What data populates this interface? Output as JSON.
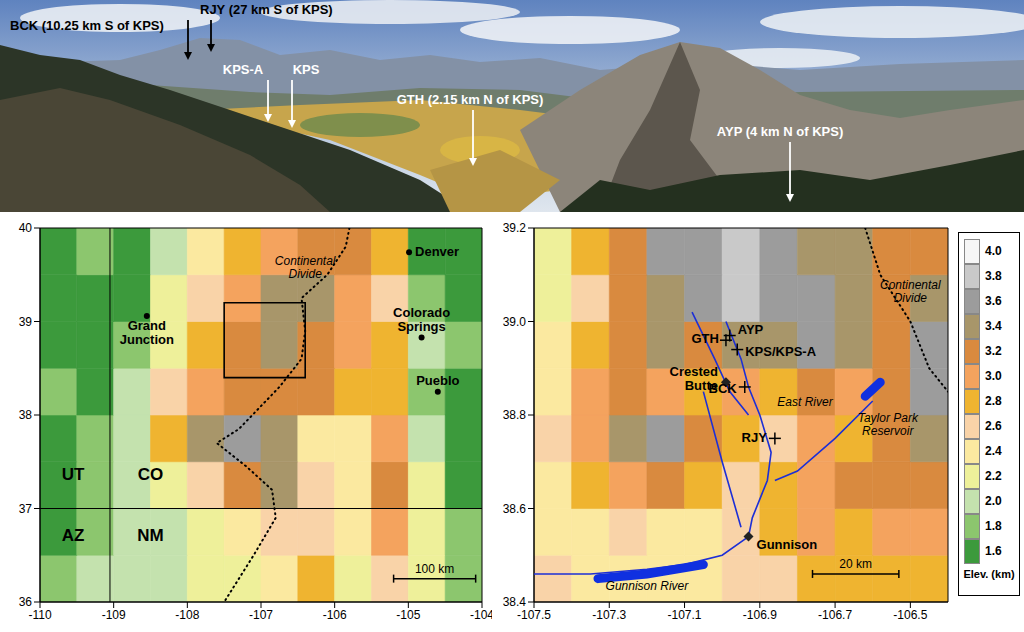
{
  "photo": {
    "labels": [
      "BCK (10.25 km S of KPS)",
      "RJY (27 km S of KPS)",
      "KPS-A",
      "KPS",
      "GTH (2.15 km N of KPS)",
      "AYP (4 km N of KPS)"
    ]
  },
  "chart_data": [
    {
      "type": "map",
      "xlim": [
        -110,
        -104
      ],
      "ylim": [
        36,
        40
      ],
      "xticks": [
        -110,
        -109,
        -108,
        -107,
        -106,
        -105,
        -104
      ],
      "yticks": [
        36,
        37,
        38,
        39,
        40
      ],
      "cells": {
        "lon_edges": [
          -110,
          -109.5,
          -109,
          -108.5,
          -108,
          -107.5,
          -107,
          -106.5,
          -106,
          -105.5,
          -105,
          -104.5,
          -104
        ],
        "lat_edges": [
          36,
          36.5,
          37,
          37.5,
          38,
          38.5,
          39,
          39.5,
          40
        ],
        "elevation": [
          [
            1.8,
            2.0,
            2.0,
            2.0,
            2.2,
            2.2,
            2.4,
            2.8,
            2.2,
            2.6,
            2.2,
            1.8
          ],
          [
            1.6,
            1.8,
            2.0,
            2.0,
            2.2,
            2.4,
            2.6,
            2.6,
            2.4,
            3.0,
            2.2,
            1.8
          ],
          [
            1.6,
            1.8,
            2.0,
            2.2,
            2.6,
            3.2,
            3.4,
            2.6,
            2.4,
            3.2,
            2.2,
            1.6
          ],
          [
            1.6,
            1.8,
            2.0,
            2.8,
            3.4,
            3.6,
            3.4,
            2.4,
            2.4,
            3.0,
            2.0,
            1.6
          ],
          [
            1.8,
            1.6,
            2.0,
            2.6,
            3.0,
            3.2,
            3.2,
            3.2,
            2.8,
            2.8,
            1.8,
            1.6
          ],
          [
            1.6,
            1.6,
            1.8,
            2.2,
            2.8,
            3.2,
            3.4,
            3.2,
            3.0,
            2.8,
            2.0,
            1.8
          ],
          [
            1.6,
            1.6,
            1.6,
            2.2,
            2.6,
            3.0,
            3.4,
            3.4,
            3.0,
            2.6,
            1.8,
            1.6
          ],
          [
            1.6,
            1.8,
            1.6,
            2.0,
            2.4,
            2.8,
            3.0,
            3.2,
            3.2,
            2.8,
            1.6,
            1.6
          ]
        ]
      },
      "borders": {
        "lon": -109.05,
        "lat": 37
      },
      "continental_divide": {
        "lon": [
          -105.8,
          -105.85,
          -106.1,
          -106.45,
          -106.4,
          -106.45,
          -106.75,
          -107.3,
          -107.6,
          -107.2,
          -106.85,
          -106.8,
          -107.1,
          -107.5
        ],
        "lat": [
          40,
          39.8,
          39.5,
          39.25,
          38.9,
          38.6,
          38.3,
          37.85,
          37.7,
          37.45,
          37.2,
          36.9,
          36.5,
          36.0
        ]
      },
      "points": [
        {
          "label": "Denver",
          "lon": -104.99,
          "lat": 39.74,
          "marker": "circle"
        },
        {
          "label": "Grand Junction",
          "lon": -108.55,
          "lat": 39.06,
          "marker": "circle"
        },
        {
          "label": "Colorado Springs",
          "lon": -104.82,
          "lat": 38.83,
          "marker": "circle"
        },
        {
          "label": "Pueblo",
          "lon": -104.6,
          "lat": 38.25,
          "marker": "circle"
        }
      ],
      "annotations": [
        "Continental Divide",
        "UT",
        "CO",
        "AZ",
        "NM"
      ],
      "scale_bar": {
        "km": 100,
        "label": "100 km"
      }
    },
    {
      "type": "map",
      "xlim": [
        -107.5,
        -106.4
      ],
      "ylim": [
        38.4,
        39.2
      ],
      "xticks": [
        -107.5,
        -107.3,
        -107.1,
        -106.9,
        -106.7,
        -106.5
      ],
      "yticks": [
        38.4,
        38.6,
        38.8,
        {
          "value": 39,
          "label": "39.0"
        },
        39.2
      ],
      "cells": {
        "lon_edges": [
          -107.5,
          -107.4,
          -107.3,
          -107.2,
          -107.1,
          -107.0,
          -106.9,
          -106.8,
          -106.7,
          -106.6,
          -106.5,
          -106.4
        ],
        "lat_edges": [
          38.4,
          38.5,
          38.6,
          38.7,
          38.8,
          38.9,
          39.0,
          39.1,
          39.2
        ],
        "elevation": [
          [
            2.6,
            2.4,
            2.4,
            2.4,
            2.4,
            2.6,
            2.6,
            2.8,
            2.8,
            2.8,
            2.8
          ],
          [
            2.4,
            2.4,
            2.6,
            2.4,
            2.4,
            2.6,
            2.8,
            3.0,
            2.8,
            3.0,
            3.0
          ],
          [
            2.4,
            2.8,
            3.0,
            3.2,
            2.8,
            2.6,
            2.8,
            3.0,
            3.2,
            3.2,
            3.2
          ],
          [
            2.6,
            3.0,
            3.4,
            3.6,
            3.2,
            2.8,
            2.6,
            3.0,
            2.8,
            3.2,
            3.4
          ],
          [
            2.4,
            3.0,
            3.2,
            3.0,
            2.8,
            3.0,
            2.8,
            3.2,
            3.0,
            3.2,
            3.6
          ],
          [
            2.4,
            2.8,
            3.2,
            3.4,
            3.2,
            3.4,
            3.4,
            3.6,
            3.4,
            3.2,
            3.6
          ],
          [
            2.2,
            2.6,
            3.2,
            3.4,
            3.6,
            3.8,
            3.6,
            3.6,
            3.4,
            3.2,
            3.4
          ],
          [
            2.2,
            2.8,
            3.2,
            3.6,
            3.6,
            3.8,
            3.6,
            3.4,
            3.4,
            3.2,
            3.2
          ]
        ]
      },
      "rivers": [
        {
          "lon": [
            -106.99,
            -106.95,
            -106.93,
            -106.9,
            -106.87,
            -106.88,
            -106.92,
            -106.93
          ],
          "lat": [
            39.0,
            38.92,
            38.86,
            38.8,
            38.72,
            38.66,
            38.58,
            38.54
          ]
        },
        {
          "lon": [
            -106.93,
            -107.0,
            -107.1,
            -107.2,
            -107.35,
            -107.5
          ],
          "lat": [
            38.54,
            38.5,
            38.48,
            38.47,
            38.46,
            38.46
          ]
        },
        {
          "lon": [
            -106.6,
            -106.7,
            -106.8,
            -106.86
          ],
          "lat": [
            38.83,
            38.75,
            38.68,
            38.66
          ]
        },
        {
          "lon": [
            -107.08,
            -107.02,
            -106.98,
            -106.93
          ],
          "lat": [
            39.02,
            38.92,
            38.85,
            38.8
          ]
        },
        {
          "lon": [
            -107.05,
            -107.0,
            -106.95
          ],
          "lat": [
            38.85,
            38.7,
            38.56
          ]
        }
      ],
      "reservoirs": [
        {
          "lon": [
            -107.05,
            -107.2,
            -107.33
          ],
          "lat": [
            38.48,
            38.46,
            38.45
          ]
        },
        {
          "lon": [
            -106.62,
            -106.58
          ],
          "lat": [
            38.84,
            38.87
          ]
        }
      ],
      "continental_divide": {
        "lon": [
          -106.62,
          -106.58,
          -106.5,
          -106.45,
          -106.4
        ],
        "lat": [
          39.2,
          39.1,
          39.0,
          38.9,
          38.85
        ]
      },
      "points": [
        {
          "label": "AYP",
          "lon": -106.98,
          "lat": 38.97,
          "marker": "cross"
        },
        {
          "label": "GTH",
          "lon": -106.99,
          "lat": 38.96,
          "marker": "cross"
        },
        {
          "label": "KPS/KPS-A",
          "lon": -106.96,
          "lat": 38.94,
          "marker": "cross"
        },
        {
          "label": "Crested Butte",
          "lon": -106.99,
          "lat": 38.87,
          "marker": "diamond"
        },
        {
          "label": "BCK",
          "lon": -106.94,
          "lat": 38.86,
          "marker": "cross"
        },
        {
          "label": "RJY",
          "lon": -106.86,
          "lat": 38.75,
          "marker": "cross"
        },
        {
          "label": "Gunnison",
          "lon": -106.93,
          "lat": 38.54,
          "marker": "diamond"
        }
      ],
      "annotations": [
        "Continental Divide",
        "East River",
        "Taylor Park Reservoir",
        "Gunnison River"
      ],
      "scale_bar": {
        "km": 20,
        "label": "20 km"
      },
      "colorbar": {
        "ticks": [
          1.6,
          1.8,
          {
            "value": 2,
            "label": "2.0"
          },
          2.2,
          2.4,
          2.6,
          2.8,
          {
            "value": 3,
            "label": "3.0"
          },
          3.2,
          3.4,
          3.6,
          3.8,
          {
            "value": 4,
            "label": "4.0"
          }
        ],
        "colors": [
          "#3c9a3c",
          "#8cc66e",
          "#c4e2ae",
          "#eef09a",
          "#fbe9a0",
          "#f9d3a8",
          "#efb430",
          "#f4a35e",
          "#d98a3f",
          "#a8966a",
          "#9c9c9c",
          "#c9c9c9",
          "#f6f6f6"
        ],
        "label": "Elev. (km)"
      }
    }
  ]
}
